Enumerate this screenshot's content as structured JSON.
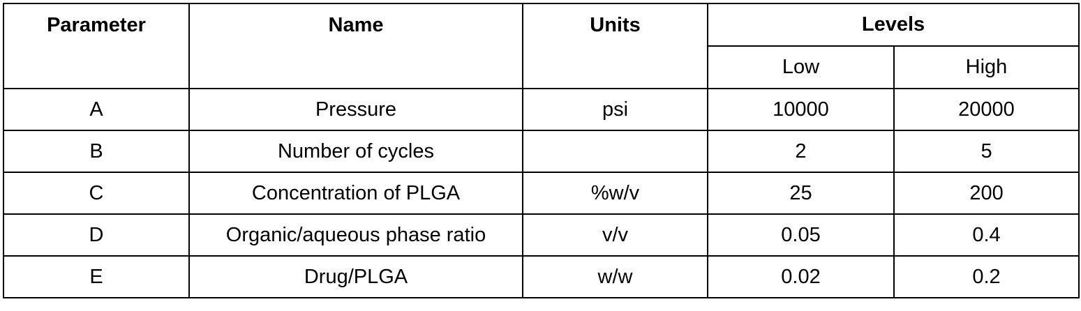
{
  "table": {
    "header": {
      "parameter": "Parameter",
      "name": "Name",
      "units": "Units",
      "levels": "Levels",
      "low": "Low",
      "high": "High"
    },
    "rows": [
      [
        "A",
        "Pressure",
        "psi",
        10000,
        20000
      ],
      [
        "B",
        "Number of cycles",
        null,
        2,
        5
      ],
      [
        "C",
        "Concentration of PLGA",
        "%w/v",
        25,
        200
      ],
      [
        "D",
        "Organic/aqueous phase ratio",
        "v/v",
        0.05,
        0.4
      ],
      [
        "E",
        "Drug/PLGA",
        "w/w",
        0.02,
        0.2
      ]
    ]
  }
}
